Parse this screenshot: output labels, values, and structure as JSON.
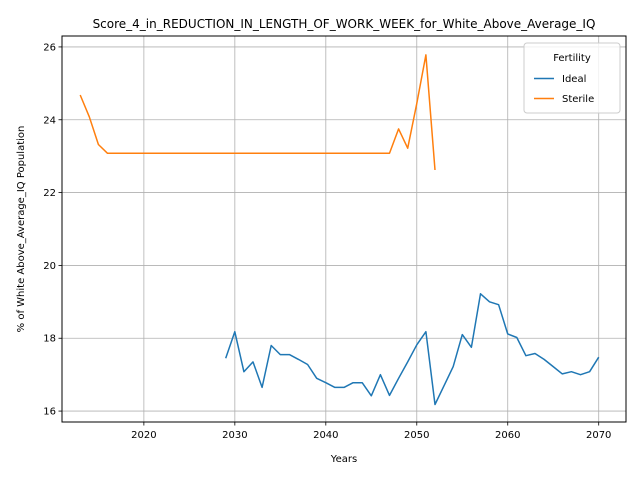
{
  "chart_data": {
    "type": "line",
    "title": "Score_4_in_REDUCTION_IN_LENGTH_OF_WORK_WEEK_for_White_Above_Average_IQ",
    "xlabel": "Years",
    "ylabel": "% of White Above_Average_IQ Population",
    "xlim": [
      2011,
      2073
    ],
    "ylim": [
      15.7,
      26.3
    ],
    "xticks": [
      2020,
      2030,
      2040,
      2050,
      2060,
      2070
    ],
    "yticks": [
      16,
      18,
      20,
      22,
      24,
      26
    ],
    "grid": true,
    "legend": {
      "title": "Fertility",
      "placement": "top-right"
    },
    "series": [
      {
        "name": "Ideal",
        "color": "#1f77b4",
        "x": [
          2029,
          2030,
          2031,
          2032,
          2033,
          2034,
          2035,
          2036,
          2037,
          2038,
          2039,
          2040,
          2041,
          2042,
          2043,
          2044,
          2045,
          2046,
          2047,
          2048,
          2049,
          2050,
          2051,
          2052,
          2053,
          2054,
          2055,
          2056,
          2057,
          2058,
          2059,
          2060,
          2061,
          2062,
          2063,
          2064,
          2065,
          2066,
          2067,
          2068,
          2069,
          2070
        ],
        "y": [
          17.45,
          18.18,
          17.08,
          17.35,
          16.65,
          17.8,
          17.55,
          17.55,
          17.42,
          17.28,
          16.9,
          16.78,
          16.65,
          16.65,
          16.78,
          16.78,
          16.42,
          17.0,
          16.43,
          16.9,
          17.35,
          17.82,
          18.18,
          16.18,
          16.7,
          17.22,
          18.1,
          17.75,
          19.22,
          19.0,
          18.92,
          18.12,
          18.02,
          17.52,
          17.58,
          17.42,
          17.22,
          17.02,
          17.08,
          17.0,
          17.08,
          17.48
        ]
      },
      {
        "name": "Sterile",
        "color": "#ff7f0e",
        "x": [
          2013,
          2014,
          2015,
          2016,
          2017,
          2018,
          2019,
          2020,
          2021,
          2022,
          2023,
          2024,
          2025,
          2026,
          2027,
          2028,
          2029,
          2030,
          2031,
          2032,
          2033,
          2034,
          2035,
          2036,
          2037,
          2038,
          2039,
          2040,
          2041,
          2042,
          2043,
          2044,
          2045,
          2046,
          2047,
          2048,
          2049,
          2050,
          2051,
          2052
        ],
        "y": [
          24.68,
          24.08,
          23.32,
          23.08,
          23.08,
          23.08,
          23.08,
          23.08,
          23.08,
          23.08,
          23.08,
          23.08,
          23.08,
          23.08,
          23.08,
          23.08,
          23.08,
          23.08,
          23.08,
          23.08,
          23.08,
          23.08,
          23.08,
          23.08,
          23.08,
          23.08,
          23.08,
          23.08,
          23.08,
          23.08,
          23.08,
          23.08,
          23.08,
          23.08,
          23.08,
          23.75,
          23.22,
          24.45,
          25.78,
          22.62
        ]
      }
    ]
  }
}
